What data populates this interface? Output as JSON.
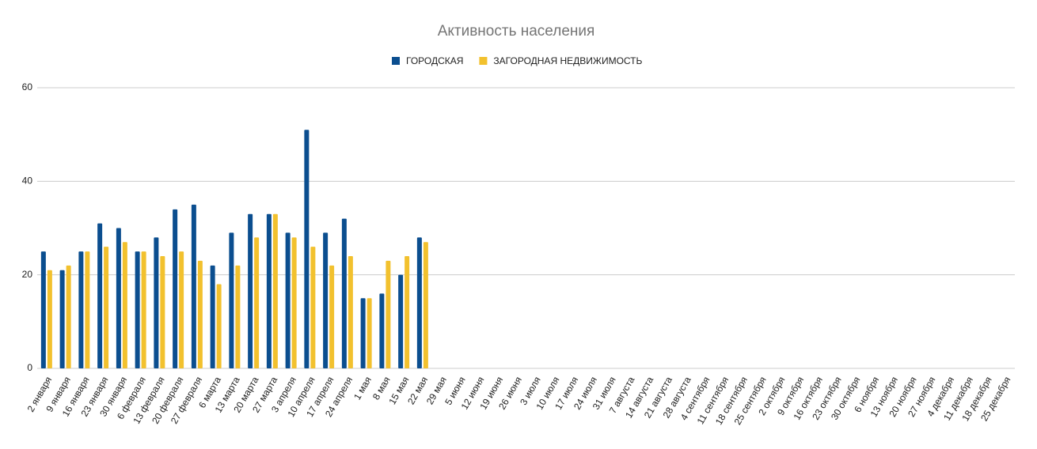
{
  "chart_data": {
    "type": "bar",
    "title": "Активность населения",
    "categories": [
      "2 января",
      "9 января",
      "16 января",
      "23 января",
      "30 января",
      "6 февраля",
      "13 февраля",
      "20 февраля",
      "27 февраля",
      "6 марта",
      "13 марта",
      "20 марта",
      "27 марта",
      "3 апреля",
      "10 апреля",
      "17 апреля",
      "24 апреля",
      "1 мая",
      "8 мая",
      "15 мая",
      "22 мая",
      "29 мая",
      "5 июня",
      "12 июня",
      "19 июня",
      "26 июня",
      "3 июля",
      "10 июля",
      "17 июля",
      "24 июля",
      "31 июля",
      "7 августа",
      "14 августа",
      "21 августа",
      "28 августа",
      "4 сентября",
      "11 сентября",
      "18 сентября",
      "25 сентября",
      "2 октября",
      "9 октября",
      "16 октября",
      "23 октября",
      "30 октября",
      "6 ноября",
      "13 ноября",
      "20 ноября",
      "27 ноября",
      "4 декабря",
      "11 декабря",
      "18 декабря",
      "25 декабря"
    ],
    "series": [
      {
        "name": "ГОРОДСКАЯ",
        "color": "#0b4e8f",
        "values": [
          25,
          21,
          25,
          31,
          30,
          25,
          28,
          34,
          35,
          22,
          29,
          33,
          33,
          29,
          51,
          29,
          32,
          15,
          16,
          20,
          28,
          null,
          null,
          null,
          null,
          null,
          null,
          null,
          null,
          null,
          null,
          null,
          null,
          null,
          null,
          null,
          null,
          null,
          null,
          null,
          null,
          null,
          null,
          null,
          null,
          null,
          null,
          null,
          null,
          null,
          null,
          null
        ]
      },
      {
        "name": "ЗАГОРОДНАЯ НЕДВИЖИМОСТЬ",
        "color": "#f2c12e",
        "values": [
          21,
          22,
          25,
          26,
          27,
          25,
          24,
          25,
          23,
          18,
          22,
          28,
          33,
          28,
          26,
          22,
          24,
          15,
          23,
          24,
          27,
          null,
          null,
          null,
          null,
          null,
          null,
          null,
          null,
          null,
          null,
          null,
          null,
          null,
          null,
          null,
          null,
          null,
          null,
          null,
          null,
          null,
          null,
          null,
          null,
          null,
          null,
          null,
          null,
          null,
          null,
          null
        ]
      }
    ],
    "ylim": [
      0,
      60
    ],
    "yticks": [
      0,
      20,
      40,
      60
    ],
    "grid": true,
    "legend": "top"
  }
}
